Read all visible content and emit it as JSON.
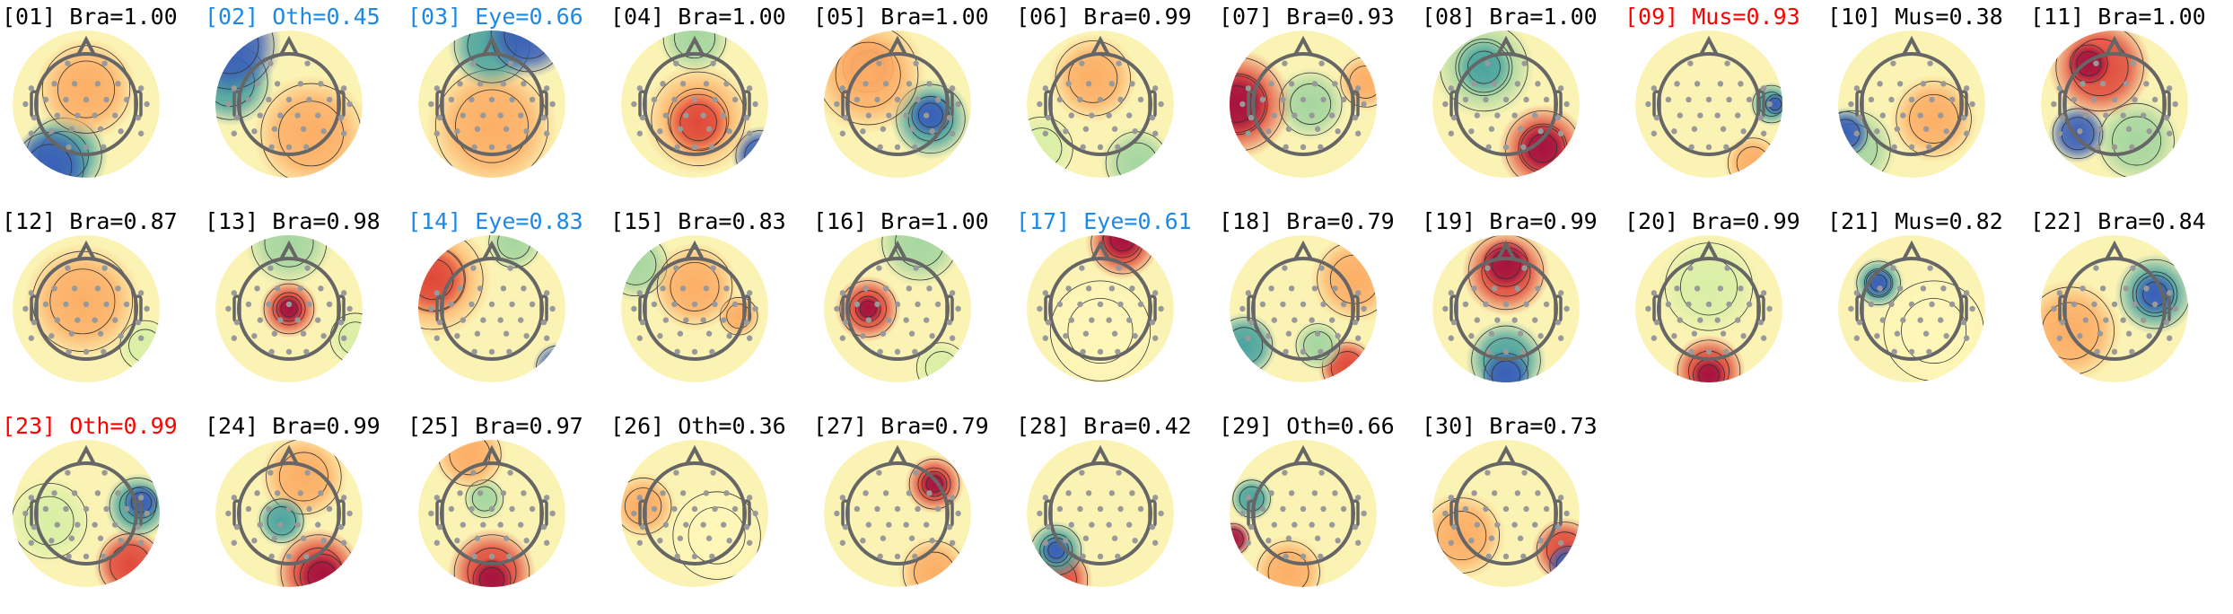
{
  "chart_data": {
    "type": "heatmap",
    "subtype": "topomap-grid",
    "colormap": "diverging blue-yellow-red",
    "label_colors": {
      "default": "#000000",
      "Eye": "#1e88e5",
      "Oth_blue": "#1e88e5",
      "flagged": "#ff0000"
    },
    "components": [
      {
        "label": "[01] Bra=1.00",
        "color": "#000000"
      },
      {
        "label": "[02] Oth=0.45",
        "color": "#1e88e5"
      },
      {
        "label": "[03] Eye=0.66",
        "color": "#1e88e5"
      },
      {
        "label": "[04] Bra=1.00",
        "color": "#000000"
      },
      {
        "label": "[05] Bra=1.00",
        "color": "#000000"
      },
      {
        "label": "[06] Bra=0.99",
        "color": "#000000"
      },
      {
        "label": "[07] Bra=0.93",
        "color": "#000000"
      },
      {
        "label": "[08] Bra=1.00",
        "color": "#000000"
      },
      {
        "label": "[09] Mus=0.93",
        "color": "#ff0000"
      },
      {
        "label": "[10] Mus=0.38",
        "color": "#000000"
      },
      {
        "label": "[11] Bra=1.00",
        "color": "#000000"
      },
      {
        "label": "[12] Bra=0.87",
        "color": "#000000"
      },
      {
        "label": "[13] Bra=0.98",
        "color": "#000000"
      },
      {
        "label": "[14] Eye=0.83",
        "color": "#1e88e5"
      },
      {
        "label": "[15] Bra=0.83",
        "color": "#000000"
      },
      {
        "label": "[16] Bra=1.00",
        "color": "#000000"
      },
      {
        "label": "[17] Eye=0.61",
        "color": "#1e88e5"
      },
      {
        "label": "[18] Bra=0.79",
        "color": "#000000"
      },
      {
        "label": "[19] Bra=0.99",
        "color": "#000000"
      },
      {
        "label": "[20] Bra=0.99",
        "color": "#000000"
      },
      {
        "label": "[21] Mus=0.82",
        "color": "#000000"
      },
      {
        "label": "[22] Bra=0.84",
        "color": "#000000"
      },
      {
        "label": "[23] Oth=0.99",
        "color": "#ff0000"
      },
      {
        "label": "[24] Bra=0.99",
        "color": "#000000"
      },
      {
        "label": "[25] Bra=0.97",
        "color": "#000000"
      },
      {
        "label": "[26] Oth=0.36",
        "color": "#000000"
      },
      {
        "label": "[27] Bra=0.79",
        "color": "#000000"
      },
      {
        "label": "[28] Bra=0.42",
        "color": "#000000"
      },
      {
        "label": "[29] Oth=0.66",
        "color": "#000000"
      },
      {
        "label": "[30] Bra=0.73",
        "color": "#000000"
      }
    ]
  }
}
